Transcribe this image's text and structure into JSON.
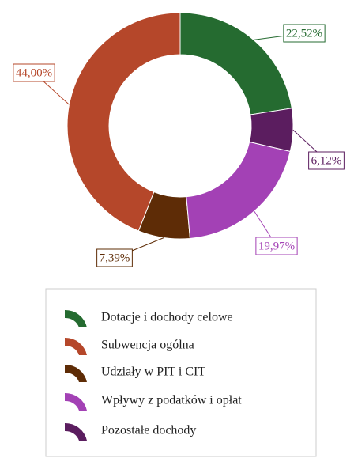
{
  "chart_data": {
    "type": "donut",
    "categories": [
      "Dotacje i dochody celowe",
      "Subwencja ogólna",
      "Udziały w PIT i CIT",
      "Wpływy z podatków i opłat",
      "Pozostałe dochody"
    ],
    "values": [
      22.52,
      44.0,
      7.39,
      19.97,
      6.12
    ],
    "value_labels": [
      "22,52%",
      "44,00%",
      "7,39%",
      "19,97%",
      "6,12%"
    ],
    "colors": [
      "#256b30",
      "#b5472a",
      "#5e2c06",
      "#a341b5",
      "#5b1d5f"
    ]
  }
}
